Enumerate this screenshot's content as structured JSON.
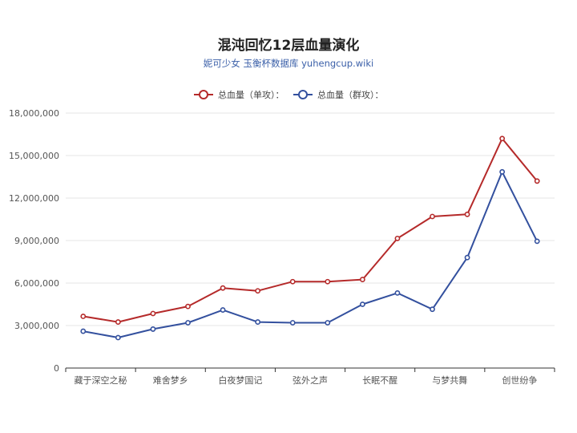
{
  "title": "混沌回忆12层血量演化",
  "subtitle": "妮可少女 玉衡杯数据库 yuhengcup.wiki",
  "chart_data": {
    "type": "line",
    "title": "混沌回忆12层血量演化",
    "subtitle": "妮可少女 玉衡杯数据库 yuhengcup.wiki",
    "xlabel": "",
    "ylabel": "",
    "ylim": [
      0,
      18000000
    ],
    "yticks": [
      0,
      3000000,
      6000000,
      9000000,
      12000000,
      15000000,
      18000000
    ],
    "ytick_labels": [
      "0",
      "3,000,000",
      "6,000,000",
      "9,000,000",
      "12,000,000",
      "15,000,000",
      "18,000,000"
    ],
    "x_tick_labels": [
      "藏于深空之秘",
      "",
      "难舍梦乡",
      "",
      "白夜梦国记",
      "",
      "弦外之声",
      "",
      "长眠不醒",
      "",
      "与梦共舞",
      "",
      "创世纷争",
      ""
    ],
    "grid": true,
    "legend_position": "top-center",
    "series": [
      {
        "name": "总血量（单攻）：",
        "color": "#b52a2a",
        "values": [
          3650000,
          3250000,
          3850000,
          4350000,
          5650000,
          5450000,
          6100000,
          6100000,
          6250000,
          9150000,
          10700000,
          10850000,
          16200000,
          13200000
        ]
      },
      {
        "name": "总血量（群攻）：",
        "color": "#33509e",
        "values": [
          2600000,
          2150000,
          2750000,
          3200000,
          4100000,
          3250000,
          3200000,
          3200000,
          4500000,
          5300000,
          4150000,
          7800000,
          13850000,
          8950000
        ]
      }
    ]
  }
}
